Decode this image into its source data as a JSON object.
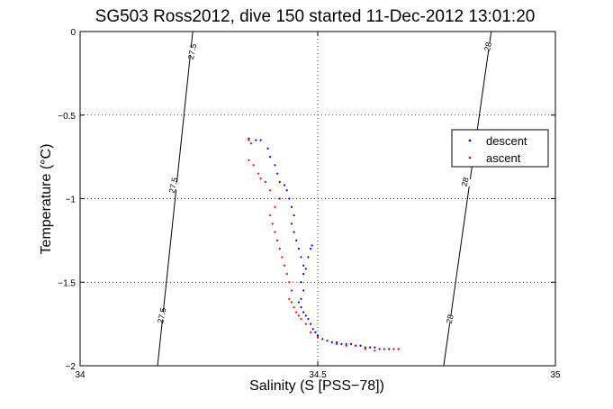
{
  "chart_data": {
    "type": "scatter",
    "title": "SG503 Ross2012, dive 150 started 11-Dec-2012 13:01:20",
    "xlabel": "Salinity (S [PSS−78])",
    "ylabel": "Temperature (°C)",
    "xlim": [
      34,
      35
    ],
    "ylim": [
      -2,
      0
    ],
    "xticks": [
      34,
      34.5,
      35
    ],
    "xtick_labels": [
      "34",
      "34.5",
      "35"
    ],
    "yticks": [
      -2,
      -1.5,
      -1,
      -0.5,
      0
    ],
    "ytick_labels": [
      "−2",
      "−1.5",
      "−1",
      "−0.5",
      "0"
    ],
    "grid": true,
    "legend_position": "right",
    "isopycnals": [
      {
        "label": "27.5",
        "points": [
          [
            34.163,
            -2.0
          ],
          [
            34.237,
            0.0
          ]
        ]
      },
      {
        "label": "28",
        "points": [
          [
            34.765,
            -2.0
          ],
          [
            34.865,
            0.0
          ]
        ]
      }
    ],
    "isopycnal_labels": [
      {
        "text": "27.5",
        "x": 34.236,
        "y": -0.12
      },
      {
        "text": "27.5",
        "x": 34.196,
        "y": -0.92
      },
      {
        "text": "27.5",
        "x": 34.172,
        "y": -1.7
      },
      {
        "text": "28",
        "x": 34.858,
        "y": -0.09
      },
      {
        "text": "28",
        "x": 34.81,
        "y": -0.9
      },
      {
        "text": "28",
        "x": 34.778,
        "y": -1.72
      }
    ],
    "series": [
      {
        "name": "descent",
        "color": "#0000ff",
        "points": [
          [
            34.355,
            -0.64
          ],
          [
            34.37,
            -0.65
          ],
          [
            34.38,
            -0.65
          ],
          [
            34.395,
            -0.7
          ],
          [
            34.4,
            -0.75
          ],
          [
            34.41,
            -0.8
          ],
          [
            34.415,
            -0.85
          ],
          [
            34.42,
            -0.9
          ],
          [
            34.43,
            -0.92
          ],
          [
            34.435,
            -0.95
          ],
          [
            34.44,
            -1.0
          ],
          [
            34.445,
            -1.05
          ],
          [
            34.45,
            -1.1
          ],
          [
            34.445,
            -1.15
          ],
          [
            34.45,
            -1.2
          ],
          [
            34.455,
            -1.25
          ],
          [
            34.46,
            -1.3
          ],
          [
            34.465,
            -1.35
          ],
          [
            34.47,
            -1.4
          ],
          [
            34.475,
            -1.42
          ],
          [
            34.48,
            -1.35
          ],
          [
            34.485,
            -1.3
          ],
          [
            34.488,
            -1.28
          ],
          [
            34.47,
            -1.45
          ],
          [
            34.465,
            -1.5
          ],
          [
            34.47,
            -1.55
          ],
          [
            34.465,
            -1.6
          ],
          [
            34.46,
            -1.62
          ],
          [
            34.465,
            -1.65
          ],
          [
            34.47,
            -1.68
          ],
          [
            34.475,
            -1.7
          ],
          [
            34.48,
            -1.72
          ],
          [
            34.485,
            -1.75
          ],
          [
            34.49,
            -1.78
          ],
          [
            34.495,
            -1.8
          ],
          [
            34.5,
            -1.82
          ],
          [
            34.51,
            -1.84
          ],
          [
            34.52,
            -1.85
          ],
          [
            34.53,
            -1.86
          ],
          [
            34.54,
            -1.86
          ],
          [
            34.55,
            -1.87
          ],
          [
            34.56,
            -1.87
          ],
          [
            34.57,
            -1.87
          ],
          [
            34.58,
            -1.88
          ],
          [
            34.59,
            -1.88
          ],
          [
            34.6,
            -1.89
          ],
          [
            34.61,
            -1.89
          ],
          [
            34.62,
            -1.89
          ],
          [
            34.63,
            -1.9
          ],
          [
            34.64,
            -1.9
          ],
          [
            34.65,
            -1.9
          ],
          [
            34.66,
            -1.9
          ],
          [
            34.67,
            -1.9
          ]
        ]
      },
      {
        "name": "ascent",
        "color": "#ff0000",
        "points": [
          [
            34.355,
            -0.65
          ],
          [
            34.36,
            -0.67
          ],
          [
            34.355,
            -0.77
          ],
          [
            34.365,
            -0.8
          ],
          [
            34.375,
            -0.85
          ],
          [
            34.38,
            -0.88
          ],
          [
            34.39,
            -0.9
          ],
          [
            34.4,
            -0.95
          ],
          [
            34.42,
            -1.0
          ],
          [
            34.41,
            -1.05
          ],
          [
            34.4,
            -1.1
          ],
          [
            34.405,
            -1.15
          ],
          [
            34.41,
            -1.2
          ],
          [
            34.415,
            -1.25
          ],
          [
            34.42,
            -1.3
          ],
          [
            34.425,
            -1.35
          ],
          [
            34.43,
            -1.4
          ],
          [
            34.435,
            -1.45
          ],
          [
            34.44,
            -1.5
          ],
          [
            34.445,
            -1.55
          ],
          [
            34.44,
            -1.6
          ],
          [
            34.445,
            -1.62
          ],
          [
            34.45,
            -1.65
          ],
          [
            34.455,
            -1.68
          ],
          [
            34.46,
            -1.7
          ],
          [
            34.465,
            -1.72
          ],
          [
            34.475,
            -1.75
          ],
          [
            34.485,
            -1.8
          ],
          [
            34.5,
            -1.83
          ],
          [
            34.52,
            -1.85
          ],
          [
            34.54,
            -1.87
          ],
          [
            34.56,
            -1.88
          ],
          [
            34.58,
            -1.88
          ],
          [
            34.6,
            -1.9
          ],
          [
            34.62,
            -1.91
          ],
          [
            34.64,
            -1.9
          ],
          [
            34.66,
            -1.9
          ],
          [
            34.67,
            -1.9
          ]
        ]
      }
    ]
  }
}
